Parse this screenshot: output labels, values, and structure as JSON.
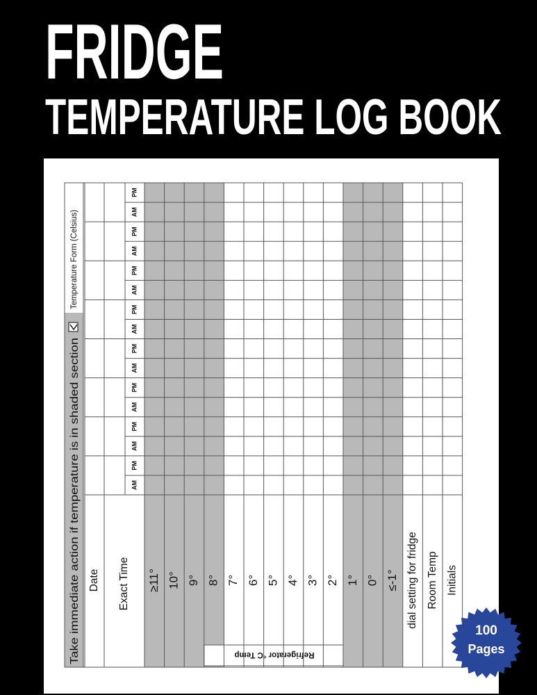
{
  "header": {
    "title": "FRIDGE",
    "subtitle": "TEMPERATURE LOG BOOK"
  },
  "form": {
    "instruction": "Take immediate action if temperature is in shaded section",
    "form_label": "Temperature Form (Celsius)",
    "group_label": "Refrigerator °C Temp",
    "shade_color": "#b9b9b9",
    "rows": [
      {
        "label": "Date",
        "shaded": false
      },
      {
        "label": "Exact Time",
        "shaded": false
      },
      {
        "label": "≥11°",
        "shaded": true
      },
      {
        "label": "10°",
        "shaded": true
      },
      {
        "label": "9°",
        "shaded": true
      },
      {
        "label": "8°",
        "shaded": true
      },
      {
        "label": "7°",
        "shaded": false
      },
      {
        "label": "6°",
        "shaded": false
      },
      {
        "label": "5°",
        "shaded": false
      },
      {
        "label": "4°",
        "shaded": false
      },
      {
        "label": "3°",
        "shaded": false
      },
      {
        "label": "2°",
        "shaded": false
      },
      {
        "label": "1°",
        "shaded": true
      },
      {
        "label": "0°",
        "shaded": true
      },
      {
        "label": "≤-1°",
        "shaded": true
      },
      {
        "label": "dial setting for fridge",
        "shaded": false
      },
      {
        "label": "Room Temp",
        "shaded": false
      },
      {
        "label": "Initials",
        "shaded": false
      }
    ],
    "time_labels": [
      "AM",
      "PM",
      "AM",
      "PM",
      "AM",
      "PM",
      "AM",
      "PM",
      "AM",
      "PM",
      "AM",
      "PM",
      "AM",
      "PM",
      "AM",
      "PM"
    ]
  },
  "badge": {
    "number": "100",
    "text": "Pages"
  }
}
